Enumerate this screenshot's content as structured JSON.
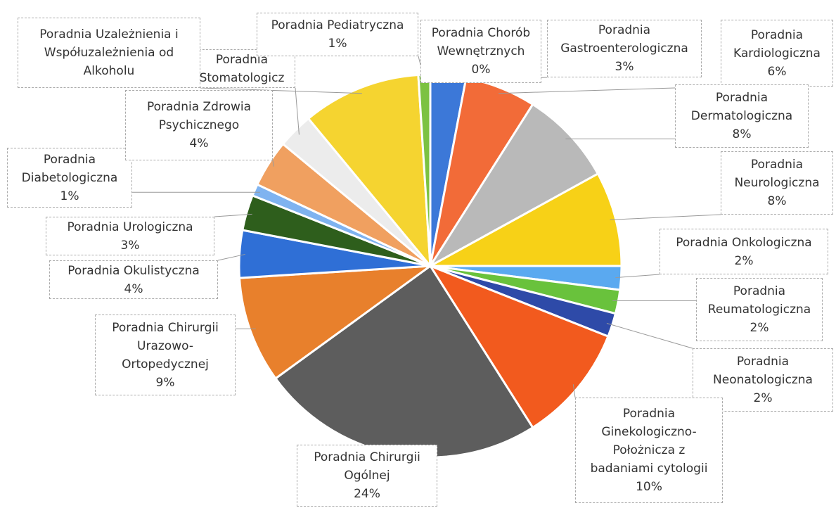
{
  "chart_data": {
    "type": "pie",
    "categories": [
      "Poradnia Chorób Wewnętrznych",
      "Poradnia Gastroenterologiczna",
      "Poradnia Kardiologiczna",
      "Poradnia Dermatologiczna",
      "Poradnia Neurologiczna",
      "Poradnia Onkologiczna",
      "Poradnia Reumatologiczna",
      "Poradnia Neonatologiczna",
      "Poradnia Ginekologiczno-Położnicza z badaniami cytologii",
      "Poradnia Chirurgii Ogólnej",
      "Poradnia Chirurgii Urazowo-Ortopedycznej",
      "Poradnia Okulistyczna",
      "Poradnia Urologiczna",
      "Poradnia Diabetologiczna",
      "Poradnia Zdrowia Psychicznego",
      "Poradnia Stomatologicz",
      "Poradnia Uzależnienia i Współuzależnienia od Alkoholu",
      "Poradnia Pediatryczna"
    ],
    "values": [
      0,
      3,
      6,
      8,
      8,
      2,
      2,
      2,
      10,
      24,
      9,
      4,
      3,
      1,
      4,
      3,
      10,
      1
    ],
    "value_labels": [
      "0%",
      "3%",
      "6%",
      "8%",
      "8%",
      "2%",
      "2%",
      "2%",
      "10%",
      "24%",
      "9%",
      "4%",
      "3%",
      "1%",
      "4%",
      null,
      null,
      "1%"
    ],
    "colors": [
      "#4472c4",
      "#3c78d8",
      "#f26b38",
      "#b9b9b9",
      "#f7d117",
      "#5aa9f0",
      "#69c23c",
      "#2e4aa8",
      "#f25a1e",
      "#5d5d5d",
      "#e8802c",
      "#2f6fd6",
      "#2e5e1c",
      "#7fb3f0",
      "#f0a060",
      "#ececec",
      "#f5d430",
      "#7cc242"
    ]
  }
}
